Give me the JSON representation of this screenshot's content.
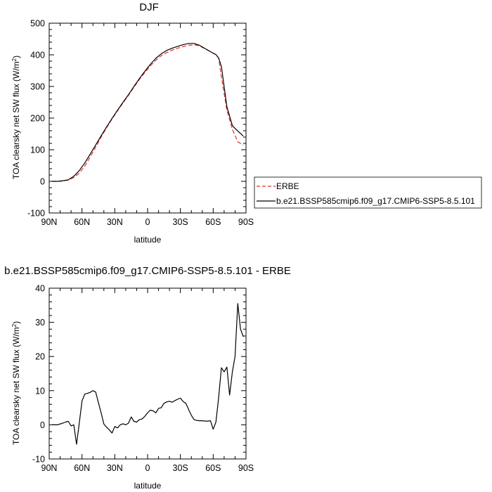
{
  "chart_data": [
    {
      "type": "line",
      "title": "DJF",
      "xlabel": "latitude",
      "ylabel": "TOA clearsky net SW flux (W/m",
      "ylabel_sup": "2",
      "ylabel_close": ")",
      "xlim": [
        90,
        -90
      ],
      "ylim": [
        -100,
        500
      ],
      "x_ticks": [
        90,
        60,
        30,
        0,
        -30,
        -60,
        -90
      ],
      "x_tick_labels": [
        "90N",
        "60N",
        "30N",
        "0",
        "30S",
        "60S",
        "90S"
      ],
      "y_ticks": [
        -100,
        0,
        100,
        200,
        300,
        400,
        500
      ],
      "y_tick_labels": [
        "-100",
        "0",
        "100",
        "200",
        "300",
        "400",
        "500"
      ],
      "legend_position": "right",
      "series": [
        {
          "name": "ERBE",
          "color": "#e8302a",
          "dash": "dashed",
          "x": [
            87.5,
            82.5,
            77.5,
            72.5,
            67.5,
            62.5,
            57.5,
            52.5,
            47.5,
            42.5,
            37.5,
            32.5,
            27.5,
            22.5,
            17.5,
            12.5,
            7.5,
            2.5,
            -2.5,
            -7.5,
            -12.5,
            -17.5,
            -22.5,
            -27.5,
            -32.5,
            -37.5,
            -42.5,
            -47.5,
            -52.5,
            -57.5,
            -62.5,
            -65,
            -67.5,
            -72.5,
            -77.5,
            -82.5,
            -87.5
          ],
          "y": [
            0,
            0,
            1,
            4,
            12,
            26,
            48,
            77,
            108,
            140,
            170,
            197,
            223,
            248,
            272,
            298,
            322,
            344,
            365,
            383,
            397,
            407,
            415,
            421,
            426,
            430,
            432,
            428,
            419,
            410,
            400,
            390,
            330,
            225,
            165,
            125,
            115
          ]
        },
        {
          "name": "b.e21.BSSP585cmip6.f09_g17.CMIP6-SSP5-8.5.101",
          "color": "#000000",
          "dash": "solid",
          "x": [
            87.5,
            82.5,
            77.5,
            72.5,
            67.5,
            62.5,
            57.5,
            52.5,
            47.5,
            42.5,
            37.5,
            32.5,
            27.5,
            22.5,
            17.5,
            12.5,
            7.5,
            2.5,
            -2.5,
            -7.5,
            -12.5,
            -17.5,
            -22.5,
            -27.5,
            -32.5,
            -37.5,
            -42.5,
            -47.5,
            -52.5,
            -57.5,
            -62.5,
            -65,
            -67.5,
            -72.5,
            -77.5,
            -82.5,
            -87.5
          ],
          "y": [
            0,
            0,
            2,
            5,
            16,
            34,
            58,
            86,
            115,
            144,
            172,
            199,
            225,
            250,
            274,
            300,
            325,
            348,
            370,
            389,
            403,
            414,
            421,
            427,
            432,
            436,
            436,
            430,
            420,
            410,
            401,
            390,
            363,
            236,
            176,
            159,
            143
          ]
        }
      ]
    },
    {
      "type": "line",
      "title": "b.e21.BSSP585cmip6.f09_g17.CMIP6-SSP5-8.5.101 - ERBE",
      "xlabel": "latitude",
      "ylabel": "TOA clearsky net SW flux (W/m",
      "ylabel_sup": "2",
      "ylabel_close": ")",
      "xlim": [
        90,
        -90
      ],
      "ylim": [
        -10,
        40
      ],
      "x_ticks": [
        90,
        60,
        30,
        0,
        -30,
        -60,
        -90
      ],
      "x_tick_labels": [
        "90N",
        "60N",
        "30N",
        "0",
        "30S",
        "60S",
        "90S"
      ],
      "y_ticks": [
        -10,
        0,
        10,
        20,
        30,
        40
      ],
      "y_tick_labels": [
        "-10",
        "0",
        "10",
        "20",
        "30",
        "40"
      ],
      "series": [
        {
          "color": "#000000",
          "dash": "solid",
          "x": [
            87.5,
            82.5,
            77.5,
            75,
            72.5,
            70,
            67.5,
            65,
            62.5,
            60,
            57.5,
            55,
            52.5,
            50,
            47.5,
            45,
            42.5,
            40,
            37.5,
            35,
            32.5,
            30,
            27.5,
            25,
            22.5,
            20,
            17.5,
            15,
            12.5,
            10,
            7.5,
            5,
            2.5,
            0,
            -2.5,
            -5,
            -7.5,
            -10,
            -12.5,
            -15,
            -17.5,
            -20,
            -22.5,
            -25,
            -27.5,
            -30,
            -32.5,
            -35,
            -37.5,
            -40,
            -42.5,
            -45,
            -47.5,
            -50,
            -52.5,
            -55,
            -57.5,
            -60,
            -62.5,
            -65,
            -67.5,
            -70,
            -72.5,
            -75,
            -77.5,
            -80,
            -82.5,
            -85,
            -87.5
          ],
          "y": [
            0,
            0,
            0.5,
            0.8,
            1,
            -0.3,
            0,
            -5.7,
            0.5,
            7,
            9,
            9.2,
            9.5,
            10,
            9.6,
            6.5,
            3.5,
            0.2,
            -0.7,
            -1.5,
            -2.4,
            -0.5,
            -0.9,
            0,
            0.3,
            0,
            0.5,
            2.3,
            1,
            0.8,
            1.5,
            1.7,
            2.5,
            3.5,
            4.3,
            4.1,
            3.5,
            4.8,
            5,
            6.3,
            6.7,
            6.9,
            6.6,
            7.1,
            7.5,
            7.8,
            6.8,
            6.3,
            4.5,
            2.8,
            1.5,
            1.3,
            1.2,
            1.2,
            1.1,
            1.1,
            1.2,
            -1.3,
            0.8,
            8,
            16.7,
            15.5,
            16.9,
            8.7,
            15.5,
            20,
            35.5,
            28,
            25.8
          ]
        }
      ]
    }
  ]
}
